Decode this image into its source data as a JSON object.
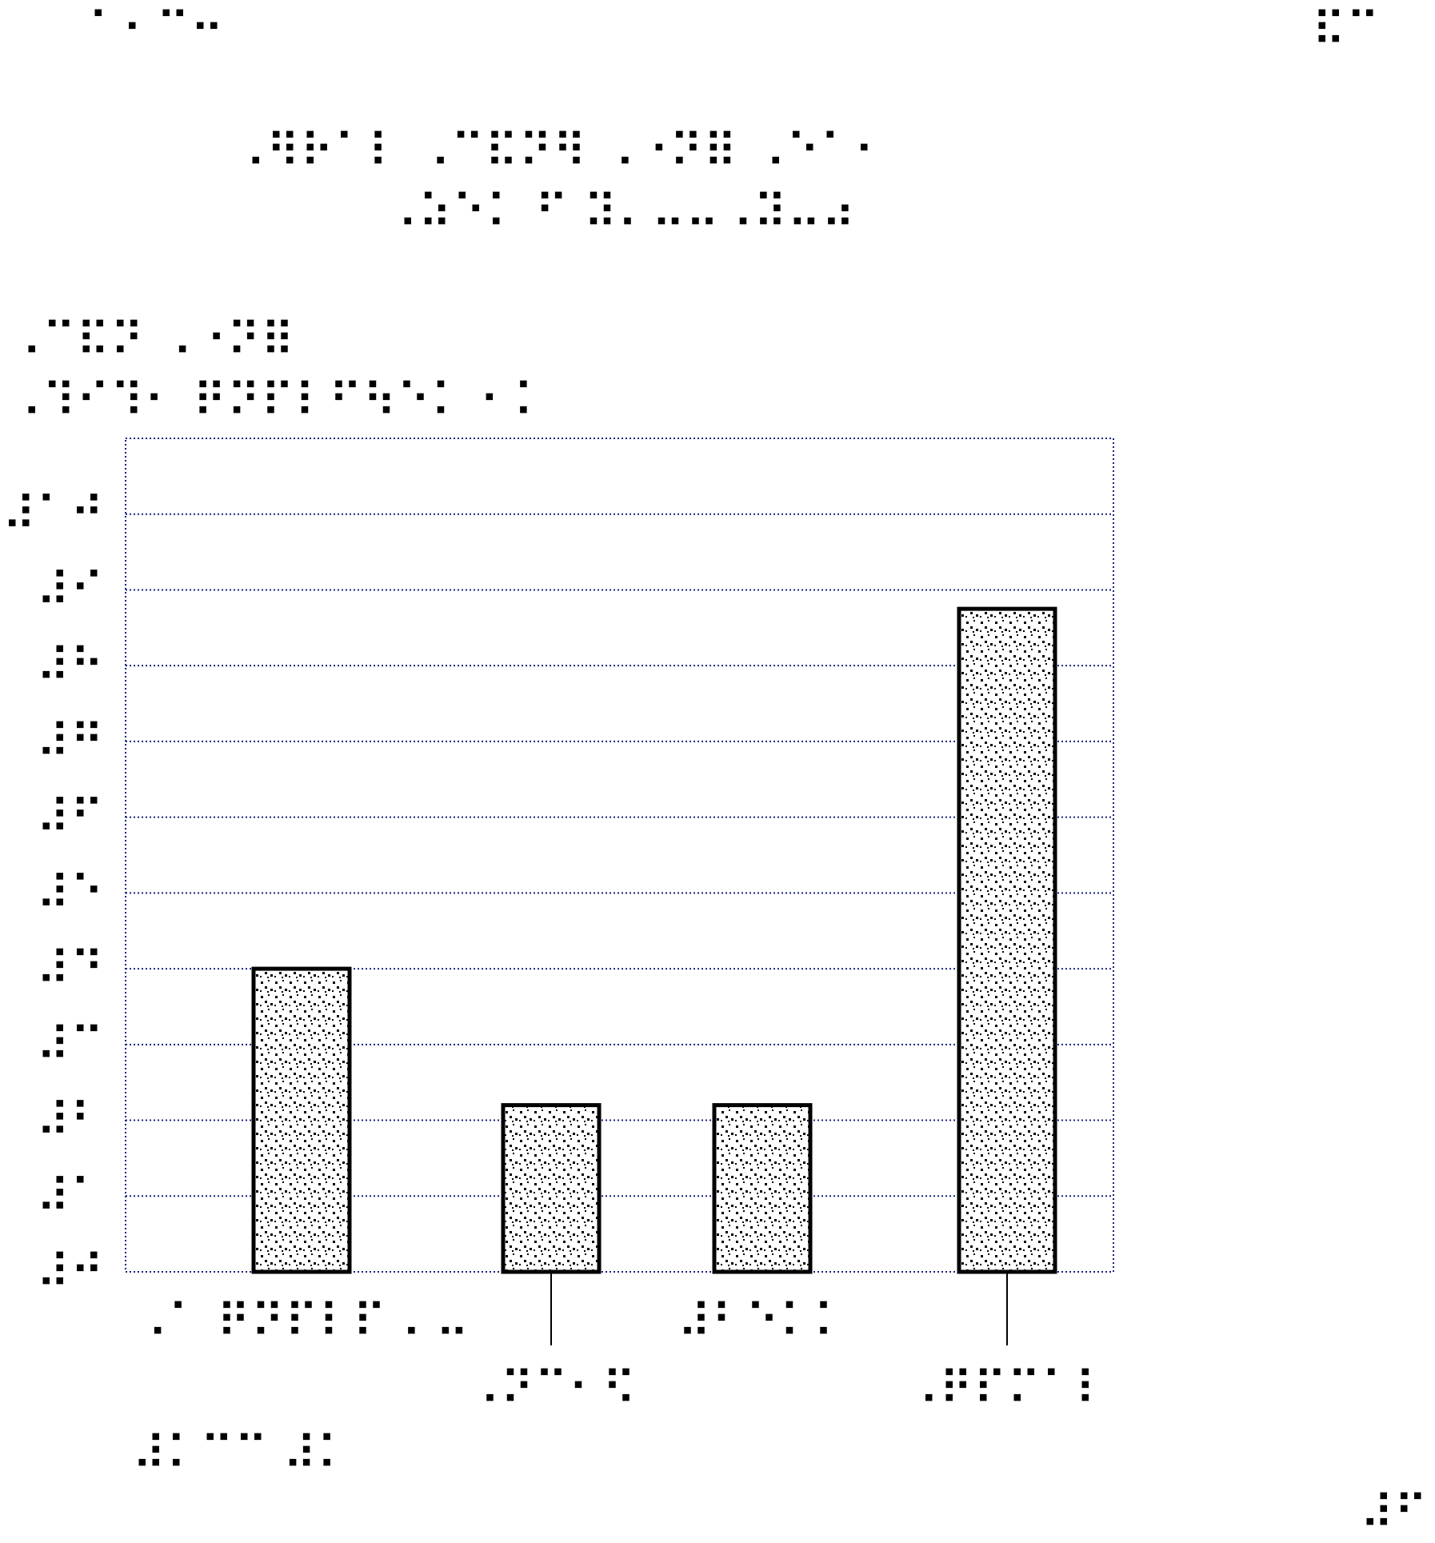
{
  "page": {
    "left_number": "⠁⠂⠉⠒",
    "right_number": "⠯⠉",
    "footer_mark": "⠼⠋"
  },
  "chart_data": {
    "type": "bar",
    "title": [
      "⠠⠻⠗⠁⠇ ⠠⠉⠯⠝⠻ ⠠⠐⠝⠿ ⠠⠑⠁⠂",
      "⠠⠵⠑⠅ ⠋ ⠽⠄⠤⠤⠠⠽⠤⠴"
    ],
    "ylabel": [
      "⠠⠉⠯⠝ ⠠⠐⠝⠿",
      "⠠⠹⠊⠹⠂ ⠟⠝⠏⠇⠋⠳⠑⠅ ⠂⠅"
    ],
    "xlabel": "⠼⠅⠉⠉ ⠼⠅",
    "categories": [
      "⠠⠁ ⠟⠝⠏⠇⠏ ⠄⠤",
      "⠠⠝⠉⠂⠫",
      "⠼⠃⠑⠅⠅",
      "⠠⠟⠏⠍⠁⠇"
    ],
    "category_label_rows": [
      0,
      1,
      0,
      1
    ],
    "values": [
      4,
      2.2,
      2.2,
      8.75
    ],
    "ylim": [
      0,
      11
    ],
    "y_ticks": [
      0,
      1,
      2,
      3,
      4,
      5,
      6,
      7,
      8,
      9,
      10
    ],
    "y_tick_labels": [
      "⠼⠚",
      "⠼⠁",
      "⠼⠃",
      "⠼⠉",
      "⠼⠙",
      "⠼⠑",
      "⠼⠋",
      "⠼⠛",
      "⠼⠓",
      "⠼⠊",
      "⠼⠁⠚"
    ],
    "grid": true,
    "grid_color": "#1a237e",
    "bar_fill": "stippled",
    "bar_stroke": "#000000"
  }
}
